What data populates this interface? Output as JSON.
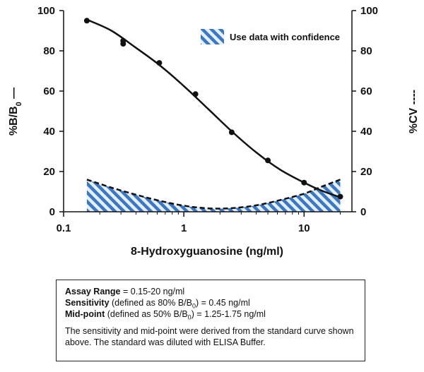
{
  "chart_data": {
    "type": "line",
    "x_scale": "log",
    "xlabel": "8-Hydroxyguanosine (ng/ml)",
    "ylabel_left": {
      "main": "%B/B",
      "sub": "0",
      "suffix": " —"
    },
    "ylabel_right": "%CV ----",
    "xlim": [
      0.1,
      25
    ],
    "ylim": [
      0,
      100
    ],
    "x_ticks": [
      "0.1",
      "1",
      "10"
    ],
    "y_ticks": [
      "0",
      "20",
      "40",
      "60",
      "80",
      "100"
    ],
    "series": [
      {
        "style": "solid-with-points",
        "points": [
          {
            "x": 0.156,
            "y": 95
          },
          {
            "x": 0.313,
            "y": 85
          },
          {
            "x": 0.313,
            "y": 83.5
          },
          {
            "x": 0.625,
            "y": 74
          },
          {
            "x": 1.25,
            "y": 58.5
          },
          {
            "x": 2.5,
            "y": 39.5
          },
          {
            "x": 5,
            "y": 25.5
          },
          {
            "x": 10,
            "y": 14.5
          },
          {
            "x": 20,
            "y": 7.5
          }
        ],
        "curve": [
          {
            "x": 0.156,
            "y": 95.5
          },
          {
            "x": 0.25,
            "y": 90
          },
          {
            "x": 0.4,
            "y": 81.5
          },
          {
            "x": 0.625,
            "y": 73
          },
          {
            "x": 1.0,
            "y": 62.5
          },
          {
            "x": 1.6,
            "y": 51
          },
          {
            "x": 2.5,
            "y": 40
          },
          {
            "x": 4.0,
            "y": 29.5
          },
          {
            "x": 6.3,
            "y": 21
          },
          {
            "x": 10,
            "y": 14.5
          },
          {
            "x": 14,
            "y": 10.5
          },
          {
            "x": 20,
            "y": 7.2
          }
        ]
      },
      {
        "style": "dashed",
        "curve": [
          {
            "x": 0.156,
            "y": 16
          },
          {
            "x": 0.25,
            "y": 12
          },
          {
            "x": 0.4,
            "y": 8.5
          },
          {
            "x": 0.625,
            "y": 5.5
          },
          {
            "x": 1.0,
            "y": 3
          },
          {
            "x": 1.6,
            "y": 1.7
          },
          {
            "x": 2.5,
            "y": 1.8
          },
          {
            "x": 4.0,
            "y": 3.2
          },
          {
            "x": 6.3,
            "y": 5.8
          },
          {
            "x": 10,
            "y": 9
          },
          {
            "x": 14,
            "y": 12.5
          },
          {
            "x": 20,
            "y": 16
          }
        ]
      }
    ],
    "shaded_region_label": "Use data with confidence",
    "colors": {
      "hatch": "#3b78c3",
      "hatch_bg": "#e6efff",
      "line": "#111111"
    },
    "legend_position": "top-right"
  },
  "info_box": {
    "assay_range_label": "Assay Range",
    "assay_range_value": " = 0.15-20 ng/ml",
    "sensitivity_label": "Sensitivity",
    "sensitivity_pre": " (defined as 80% B/B",
    "sensitivity_sub": "0",
    "sensitivity_post": ") = 0.45 ng/ml",
    "midpoint_label": "Mid-point",
    "midpoint_pre": " (defined as 50% B/B",
    "midpoint_sub": "0",
    "midpoint_post": ") = 1.25-1.75 ng/ml",
    "note": "The sensitivity and mid-point were derived from the standard curve shown above. The standard was diluted with ELISA Buffer."
  }
}
